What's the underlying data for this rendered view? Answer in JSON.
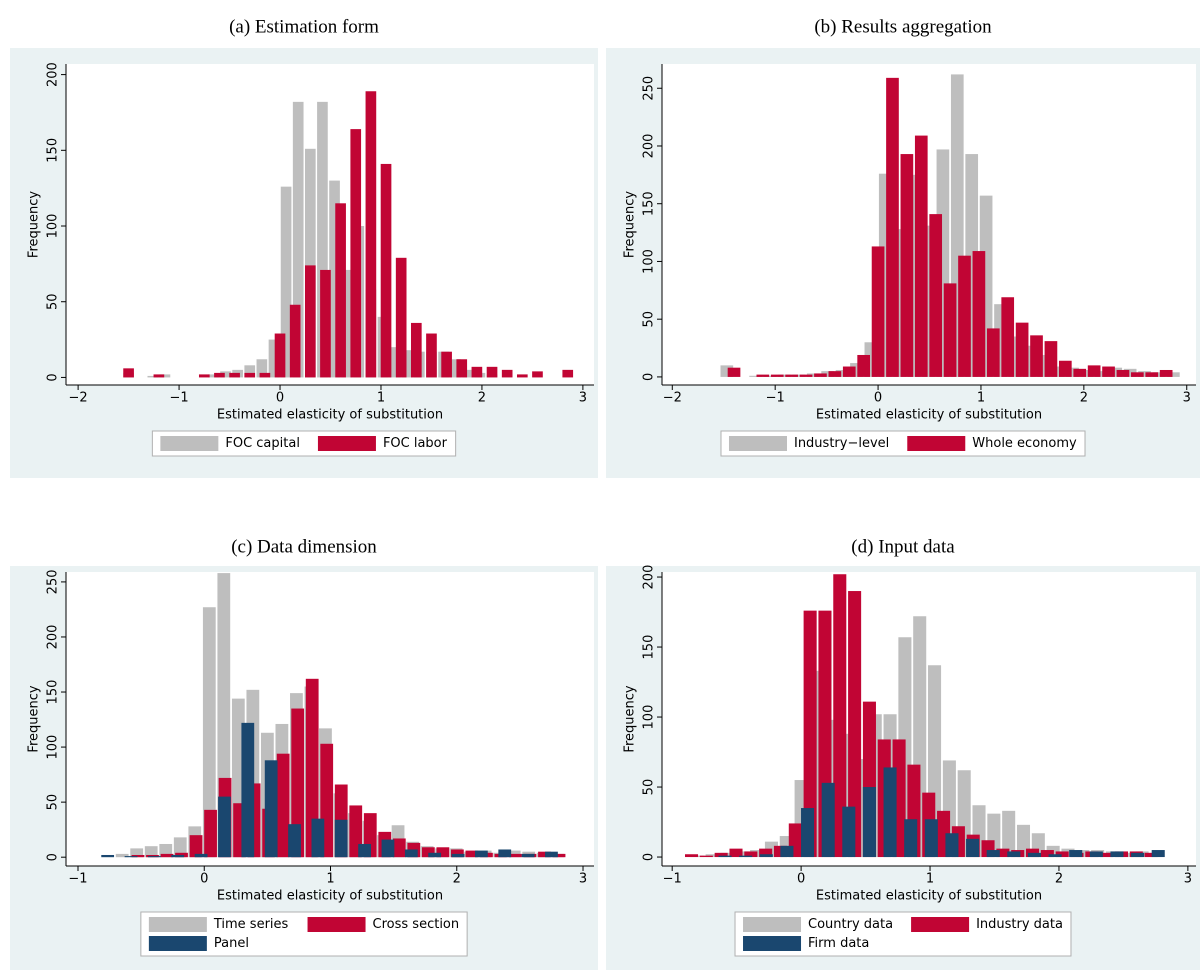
{
  "chart_data": [
    {
      "type": "bar",
      "title": "(a) Estimation form",
      "xlabel": "Estimated elasticity of substitution",
      "ylabel": "Frequency",
      "xlim": [
        -2.12,
        3.11
      ],
      "ylim": [
        -5,
        207
      ],
      "xticks": [
        {
          "value": -2,
          "label": "−2"
        },
        {
          "value": -1,
          "label": "−1"
        },
        0,
        1,
        2,
        3
      ],
      "yticks": [
        0,
        50,
        100,
        150,
        200
      ],
      "legend": "bottom",
      "series": [
        {
          "name": "FOC capital",
          "color": "#bebebe",
          "x": [
            -1.5,
            -1.38,
            -1.26,
            -1.14,
            -1.02,
            -0.9,
            -0.78,
            -0.66,
            -0.54,
            -0.42,
            -0.3,
            -0.18,
            -0.06,
            0.06,
            0.18,
            0.3,
            0.42,
            0.54,
            0.66,
            0.78,
            0.9,
            1.02,
            1.14,
            1.26,
            1.38,
            1.5,
            1.62,
            1.74,
            1.86,
            1.98,
            2.1
          ],
          "values": [
            3,
            0,
            1,
            2,
            0,
            0,
            0,
            2,
            4,
            5,
            8,
            12,
            25,
            126,
            182,
            151,
            182,
            130,
            71,
            100,
            58,
            40,
            20,
            18,
            17,
            17,
            17,
            12,
            5,
            3,
            2
          ]
        },
        {
          "name": "FOC labor",
          "color": "#c10534",
          "x": [
            -1.5,
            -1.35,
            -1.2,
            -1.05,
            -0.9,
            -0.75,
            -0.6,
            -0.45,
            -0.3,
            -0.15,
            0,
            0.15,
            0.3,
            0.45,
            0.6,
            0.75,
            0.9,
            1.05,
            1.2,
            1.35,
            1.5,
            1.65,
            1.8,
            1.95,
            2.1,
            2.25,
            2.4,
            2.55,
            2.7,
            2.85
          ],
          "values": [
            6,
            0,
            2,
            0,
            0,
            2,
            3,
            3,
            3,
            3,
            29,
            48,
            74,
            71,
            115,
            164,
            189,
            141,
            79,
            36,
            29,
            17,
            12,
            7,
            7,
            5,
            2,
            4,
            0,
            5
          ]
        }
      ]
    },
    {
      "type": "bar",
      "title": "(b) Results aggregation",
      "xlabel": "Estimated elasticity of substitution",
      "ylabel": "Frequency",
      "xlim": [
        -2.1,
        3.09
      ],
      "ylim": [
        -7,
        271
      ],
      "xticks": [
        {
          "value": -2,
          "label": "−2"
        },
        {
          "value": -1,
          "label": "−1"
        },
        0,
        1,
        2,
        3
      ],
      "yticks": [
        0,
        50,
        100,
        150,
        200,
        250
      ],
      "legend": "bottom",
      "series": [
        {
          "name": "Industry−level",
          "color": "#bebebe",
          "x": [
            -1.47,
            -1.33,
            -1.19,
            -1.05,
            -0.91,
            -0.77,
            -0.63,
            -0.49,
            -0.35,
            -0.21,
            -0.07,
            0.07,
            0.21,
            0.35,
            0.49,
            0.63,
            0.77,
            0.91,
            1.05,
            1.19,
            1.33,
            1.47,
            1.61,
            1.75,
            1.89,
            2.03,
            2.17,
            2.31,
            2.45,
            2.59,
            2.73,
            2.87
          ],
          "values": [
            10,
            0,
            1,
            1,
            2,
            2,
            3,
            5,
            6,
            12,
            30,
            176,
            128,
            175,
            131,
            197,
            262,
            193,
            157,
            63,
            35,
            27,
            19,
            9,
            8,
            6,
            5,
            8,
            7,
            5,
            4,
            4
          ]
        },
        {
          "name": "Whole economy",
          "color": "#c10534",
          "x": [
            -1.4,
            -1.26,
            -1.12,
            -0.98,
            -0.84,
            -0.7,
            -0.56,
            -0.42,
            -0.28,
            -0.14,
            0,
            0.14,
            0.28,
            0.42,
            0.56,
            0.7,
            0.84,
            0.98,
            1.12,
            1.26,
            1.4,
            1.54,
            1.68,
            1.82,
            1.96,
            2.1,
            2.24,
            2.38,
            2.52,
            2.66,
            2.8
          ],
          "values": [
            8,
            0,
            2,
            2,
            2,
            2,
            3,
            5,
            9,
            19,
            113,
            259,
            193,
            209,
            141,
            81,
            105,
            109,
            42,
            69,
            47,
            36,
            31,
            14,
            7,
            10,
            9,
            6,
            4,
            4,
            6
          ]
        }
      ]
    },
    {
      "type": "bar",
      "title": "(c) Data dimension",
      "xlabel": "Estimated elasticity of substitution",
      "ylabel": "Frequency",
      "xlim": [
        -1.095,
        3.087
      ],
      "ylim": [
        -8,
        259
      ],
      "xticks": [
        {
          "value": -1,
          "label": "−1"
        },
        0,
        1,
        2,
        3
      ],
      "yticks": [
        0,
        50,
        100,
        150,
        200,
        250
      ],
      "legend": "bottom",
      "series": [
        {
          "name": "Time series",
          "color": "#bebebe",
          "x": [
            -0.765,
            -0.65,
            -0.535,
            -0.42,
            -0.305,
            -0.19,
            -0.075,
            0.04,
            0.155,
            0.27,
            0.385,
            0.5,
            0.615,
            0.73,
            0.845,
            0.96,
            1.075,
            1.19,
            1.305,
            1.42,
            1.535,
            1.65,
            1.765,
            1.88,
            1.995,
            2.11,
            2.225,
            2.34,
            2.455,
            2.57,
            2.685,
            2.8
          ],
          "values": [
            0,
            3,
            8,
            10,
            12,
            18,
            28,
            227,
            258,
            144,
            152,
            113,
            121,
            149,
            155,
            117,
            58,
            40,
            33,
            20,
            29,
            14,
            10,
            8,
            8,
            5,
            6,
            4,
            6,
            5,
            4,
            3
          ]
        },
        {
          "name": "Cross section",
          "color": "#c10534",
          "x": [
            -0.755,
            -0.64,
            -0.525,
            -0.41,
            -0.295,
            -0.18,
            -0.065,
            0.05,
            0.165,
            0.28,
            0.395,
            0.51,
            0.625,
            0.74,
            0.855,
            0.97,
            1.085,
            1.2,
            1.315,
            1.43,
            1.545,
            1.66,
            1.775,
            1.89,
            2.005,
            2.12,
            2.235,
            2.35,
            2.465,
            2.58,
            2.695,
            2.81
          ],
          "values": [
            0,
            0,
            2,
            2,
            3,
            4,
            20,
            43,
            72,
            49,
            67,
            44,
            94,
            135,
            162,
            103,
            66,
            47,
            40,
            23,
            17,
            13,
            9,
            9,
            7,
            6,
            4,
            3,
            3,
            3,
            5,
            3
          ]
        },
        {
          "name": "Panel",
          "color": "#1a476f",
          "x": [
            -0.765,
            -0.58,
            -0.395,
            -0.21,
            -0.025,
            0.16,
            0.345,
            0.53,
            0.715,
            0.9,
            1.085,
            1.27,
            1.455,
            1.64,
            1.825,
            2.01,
            2.195,
            2.38,
            2.565,
            2.75
          ],
          "values": [
            2,
            1,
            1,
            2,
            3,
            55,
            122,
            88,
            30,
            35,
            34,
            12,
            16,
            7,
            4,
            3,
            6,
            7,
            3,
            5
          ]
        }
      ]
    },
    {
      "type": "bar",
      "title": "(d) Input data",
      "xlabel": "Estimated elasticity of substitution",
      "ylabel": "Frequency",
      "xlim": [
        -1.079,
        3.063
      ],
      "ylim": [
        -6.4,
        203.6
      ],
      "xticks": [
        {
          "value": -1,
          "label": "−1"
        },
        0,
        1,
        2,
        3
      ],
      "yticks": [
        0,
        50,
        100,
        150,
        200
      ],
      "legend": "bottom",
      "series": [
        {
          "name": "Country data",
          "color": "#bebebe",
          "x": [
            -0.92,
            -0.805,
            -0.69,
            -0.575,
            -0.46,
            -0.345,
            -0.23,
            -0.115,
            0,
            0.115,
            0.23,
            0.345,
            0.46,
            0.575,
            0.69,
            0.805,
            0.92,
            1.035,
            1.15,
            1.265,
            1.38,
            1.495,
            1.61,
            1.725,
            1.84,
            1.955,
            2.07,
            2.185,
            2.3,
            2.415,
            2.53,
            2.645,
            2.76
          ],
          "values": [
            0,
            1,
            2,
            3,
            4,
            5,
            11,
            15,
            55,
            133,
            98,
            88,
            70,
            102,
            102,
            157,
            172,
            137,
            69,
            62,
            37,
            31,
            33,
            23,
            17,
            8,
            6,
            5,
            5,
            4,
            3,
            4,
            3
          ]
        },
        {
          "name": "Industry data",
          "color": "#c10534",
          "x": [
            -0.85,
            -0.735,
            -0.62,
            -0.505,
            -0.39,
            -0.275,
            -0.16,
            -0.045,
            0.07,
            0.185,
            0.3,
            0.415,
            0.53,
            0.645,
            0.76,
            0.875,
            0.99,
            1.105,
            1.22,
            1.335,
            1.45,
            1.565,
            1.68,
            1.795,
            1.91,
            2.025,
            2.14,
            2.255,
            2.37,
            2.485,
            2.6,
            2.715
          ],
          "values": [
            2,
            1,
            3,
            6,
            4,
            6,
            8,
            24,
            176,
            176,
            202,
            190,
            111,
            84,
            84,
            66,
            46,
            33,
            22,
            16,
            12,
            6,
            5,
            6,
            5,
            4,
            3,
            4,
            3,
            4,
            4,
            3
          ]
        },
        {
          "name": "Firm data",
          "color": "#1a476f",
          "x": [
            -0.75,
            -0.59,
            -0.43,
            -0.27,
            -0.11,
            0.05,
            0.21,
            0.37,
            0.53,
            0.69,
            0.85,
            1.01,
            1.17,
            1.33,
            1.49,
            1.65,
            1.81,
            1.97,
            2.13,
            2.29,
            2.45,
            2.61,
            2.77
          ],
          "values": [
            0,
            1,
            1,
            2,
            8,
            35,
            53,
            36,
            50,
            64,
            27,
            27,
            17,
            13,
            5,
            4,
            3,
            2,
            5,
            4,
            4,
            3,
            5
          ]
        }
      ]
    }
  ]
}
